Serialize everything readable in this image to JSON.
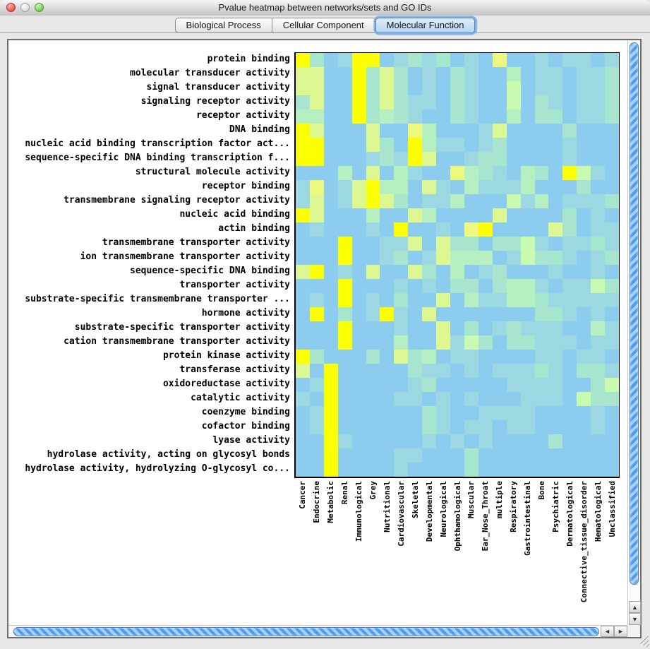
{
  "window": {
    "title": "Pvalue heatmap between networks/sets and GO IDs"
  },
  "traffic_lights": [
    {
      "name": "close"
    },
    {
      "name": "minimize"
    },
    {
      "name": "zoom"
    }
  ],
  "tabs": [
    {
      "label": "Biological Process",
      "selected": false
    },
    {
      "label": "Cellular Component",
      "selected": false
    },
    {
      "label": "Molecular Function",
      "selected": true
    }
  ],
  "scrollbar_icons": {
    "up": "▲",
    "down": "▼",
    "left": "◄",
    "right": "►"
  },
  "chart_data": {
    "type": "heatmap",
    "title": "Pvalue heatmap between networks/sets and GO IDs",
    "rows": [
      "protein binding",
      "molecular transducer activity",
      "signal transducer activity",
      "signaling receptor activity",
      "receptor activity",
      "DNA binding",
      "nucleic acid binding transcription factor act...",
      "sequence-specific DNA binding transcription f...",
      "structural molecule activity",
      "receptor binding",
      "transmembrane signaling receptor activity",
      "nucleic acid binding",
      "actin binding",
      "transmembrane transporter activity",
      "ion transmembrane transporter activity",
      "sequence-specific DNA binding",
      "transporter activity",
      "substrate-specific transmembrane transporter ...",
      "hormone activity",
      "substrate-specific transporter activity",
      "cation transmembrane transporter activity",
      "protein kinase activity",
      "transferase activity",
      "oxidoreductase activity",
      "catalytic activity",
      "coenzyme binding",
      "cofactor binding",
      "lyase activity",
      "hydrolase activity, acting on glycosyl bonds",
      "hydrolase activity, hydrolyzing O-glycosyl co..."
    ],
    "columns": [
      "Cancer",
      "Endocrine",
      "Metabolic",
      "Renal",
      "Immunological",
      "Grey",
      "Nutritional",
      "Cardiovascular",
      "Skeletal",
      "Developmental",
      "Neurological",
      "Ophthamological",
      "Muscular",
      "Ear_Nose_Throat",
      "multiple",
      "Respiratory",
      "Gastrointestinal",
      "Bone",
      "Psychiatric",
      "Dermatological",
      "Connective_tissue_disorder",
      "Hematological",
      "Unclassified"
    ],
    "palette": {
      "b": "#8BCCEF",
      "c": "#9BD8E2",
      "a": "#A8E5CE",
      "m": "#B6F0C0",
      "M": "#C8FBB0",
      "g": "#DDF892",
      "L": "#EEF87C",
      "Y": "#FBFF00"
    },
    "scale_note": "blue = weak association (high p-value), bright yellow = strong association (low p-value)",
    "cells": [
      "YabcYYbcacabcbLbbcbccbc",
      "ggbbYagabcbacbbmbccbcca",
      "ggbbYagabcbacbbMbccbcca",
      "agbbYagaccbacbbMbacbcca",
      "mmbbYamacbbacbbmbaabcca",
      "YgbbbgbbLmbbbcgbbbbabbb",
      "YYbbbgabYmccbcabbbbcbbb",
      "YYbbbcacYgbbcaabbbbcbbb",
      "bbbmbgbmcbbLmacbmabYMcb",
      "cLbcgYmmbgcbmcccmbbbabb",
      "cgbcgYgabccmbbbMcmbccca",
      "Ygbbbmbbgmbbbbgbbbbabcb",
      "bcbbbcbYbbcbLYbbbbgabcc",
      "bbbYbbccgbgaabaaMcbccac",
      "bbbYbbcabcgmmmbcMaacbca",
      "gYbcbgbbgabmbcabbbcbbcb",
      "bbbYbbbcbcbaabammcbccMa",
      "bcbYbcbabbgbmccmmaccccc",
      "bYbabcYcbgbbbbbbbaacbcb",
      "bbbYbbbcbbgbabcacccbbmc",
      "bbbYbbbmbbgcMabaacccbcc",
      "Yabbbabgambccbbbbccbccb",
      "gbYbbbbbaccbcbcccacbaac",
      "bcYbbbbbcabbbbbccccbbaM",
      "cbYbbbbccbcbcbbbcccbMaa",
      "bcYbbbbbbacbbccccbbbbcb",
      "bcYbbbbbbacbccbccbbbbcb",
      "bbYcbbbbbcbcbcbbbbabbbb",
      "bbYbbbbccbbbabbbbbbbbbb",
      "bbYbbbbcbbbbabbbbbbbbbb"
    ]
  }
}
